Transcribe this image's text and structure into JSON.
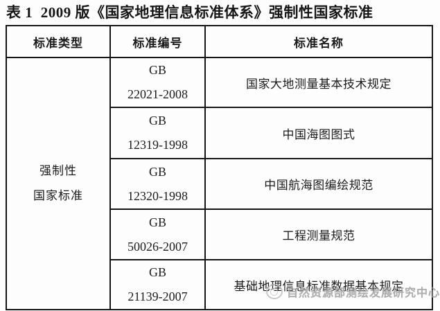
{
  "title": "表 1  2009 版《国家地理信息标准体系》强制性国家标准",
  "table": {
    "headers": [
      "标准类型",
      "标准编号",
      "标准名称"
    ],
    "type_lines": [
      "强制性",
      "国家标准"
    ],
    "rows": [
      {
        "code_prefix": "GB",
        "code_number": "22021-2008",
        "name": "国家大地测量基本技术规定"
      },
      {
        "code_prefix": "GB",
        "code_number": "12319-1998",
        "name": "中国海图图式"
      },
      {
        "code_prefix": "GB",
        "code_number": "12320-1998",
        "name": "中国航海图编绘规范"
      },
      {
        "code_prefix": "GB",
        "code_number": "50026-2007",
        "name": "工程测量规范"
      },
      {
        "code_prefix": "GB",
        "code_number": "21139-2007",
        "name": "基础地理信息标准数据基本规定"
      }
    ]
  },
  "watermark": {
    "text": "自然资源部测绘发展研究中心",
    "logo": "emblem-icon",
    "color": "#9a9a9a"
  },
  "colors": {
    "border": "#141414",
    "text": "#1b1b1b",
    "background": "#fdfdfd"
  }
}
